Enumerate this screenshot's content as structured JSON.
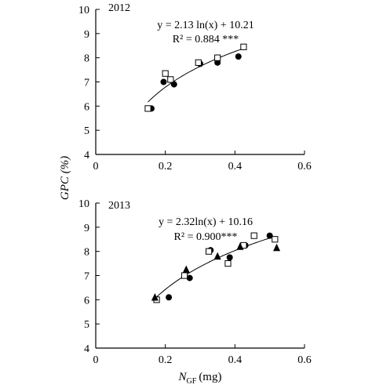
{
  "figure": {
    "ylabel": "GPC (%)",
    "xlabel_main": "N",
    "xlabel_sub": "GF",
    "xlabel_unit": "(mg)"
  },
  "chart_data": [
    {
      "type": "scatter",
      "panel_label": "2012",
      "equation": "y = 2.13 ln(x) + 10.21",
      "r2_text": "R² = 0.884 ***",
      "xlim": [
        0,
        0.6
      ],
      "ylim": [
        4,
        10
      ],
      "xticks": [
        0,
        0.2,
        0.4,
        0.6
      ],
      "yticks": [
        4,
        5,
        6,
        7,
        8,
        9,
        10
      ],
      "xtick_labels": [
        "0",
        "0.2",
        "0.4",
        "0.6"
      ],
      "ytick_labels": [
        "4",
        "5",
        "6",
        "7",
        "8",
        "9",
        "10"
      ],
      "fit": {
        "a": 2.13,
        "b": 10.21,
        "x_range": [
          0.15,
          0.42
        ]
      },
      "series": [
        {
          "marker": "circle-filled",
          "points": [
            [
              0.16,
              5.9
            ],
            [
              0.195,
              7.0
            ],
            [
              0.225,
              6.9
            ],
            [
              0.3,
              7.75
            ],
            [
              0.35,
              7.8
            ],
            [
              0.41,
              8.05
            ]
          ]
        },
        {
          "marker": "square-open",
          "points": [
            [
              0.15,
              5.9
            ],
            [
              0.2,
              7.35
            ],
            [
              0.215,
              7.1
            ],
            [
              0.295,
              7.8
            ],
            [
              0.35,
              8.0
            ],
            [
              0.425,
              8.45
            ]
          ]
        }
      ]
    },
    {
      "type": "scatter",
      "panel_label": "2013",
      "equation": "y = 2.32ln(x) + 10.16",
      "r2_text": "R² = 0.900***",
      "xlim": [
        0,
        0.6
      ],
      "ylim": [
        4,
        10
      ],
      "xticks": [
        0,
        0.2,
        0.4,
        0.6
      ],
      "yticks": [
        4,
        5,
        6,
        7,
        8,
        9,
        10
      ],
      "xtick_labels": [
        "0",
        "0.2",
        "0.4",
        "0.6"
      ],
      "ytick_labels": [
        "4",
        "5",
        "6",
        "7",
        "8",
        "9",
        "10"
      ],
      "fit": {
        "a": 2.32,
        "b": 10.16,
        "x_range": [
          0.165,
          0.515
        ]
      },
      "series": [
        {
          "marker": "circle-filled",
          "points": [
            [
              0.21,
              6.1
            ],
            [
              0.27,
              6.9
            ],
            [
              0.33,
              8.05
            ],
            [
              0.385,
              7.75
            ],
            [
              0.43,
              8.25
            ],
            [
              0.5,
              8.65
            ]
          ]
        },
        {
          "marker": "square-open",
          "points": [
            [
              0.175,
              6.0
            ],
            [
              0.255,
              7.0
            ],
            [
              0.325,
              8.0
            ],
            [
              0.38,
              7.5
            ],
            [
              0.425,
              8.25
            ],
            [
              0.455,
              8.65
            ],
            [
              0.515,
              8.5
            ]
          ]
        },
        {
          "marker": "triangle-filled",
          "points": [
            [
              0.17,
              6.1
            ],
            [
              0.26,
              7.25
            ],
            [
              0.35,
              7.8
            ],
            [
              0.415,
              8.2
            ],
            [
              0.52,
              8.15
            ]
          ]
        }
      ]
    }
  ]
}
